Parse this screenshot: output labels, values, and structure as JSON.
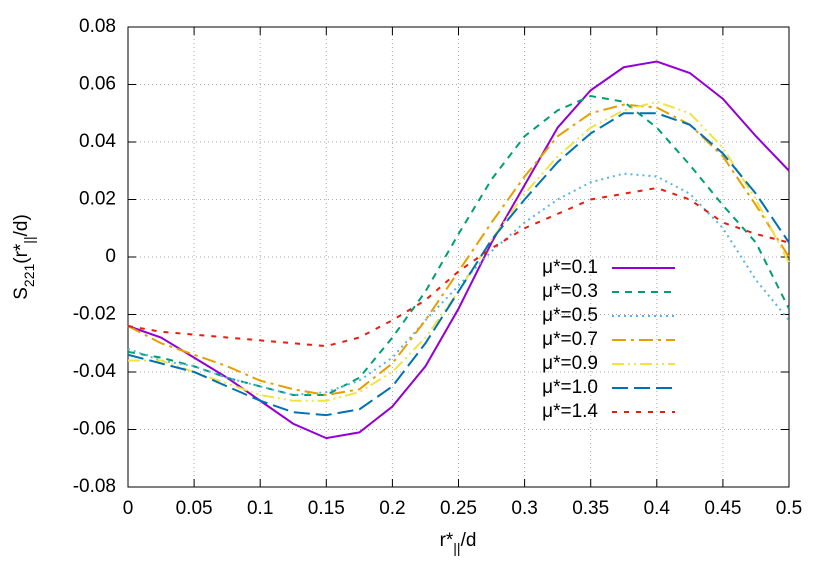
{
  "chart_data": {
    "type": "line",
    "x_label": [
      "r*",
      "||",
      "/d"
    ],
    "y_label": [
      "S",
      "221",
      "(r*",
      "||",
      "/d)"
    ],
    "x": [
      0,
      0.025,
      0.05,
      0.075,
      0.1,
      0.125,
      0.15,
      0.175,
      0.2,
      0.225,
      0.25,
      0.275,
      0.3,
      0.325,
      0.35,
      0.375,
      0.4,
      0.425,
      0.45,
      0.475,
      0.5
    ],
    "series": [
      {
        "name": "μ*=0.1",
        "color": "#9400d3",
        "dash": "none",
        "values": [
          -0.024,
          -0.028,
          -0.035,
          -0.042,
          -0.05,
          -0.058,
          -0.063,
          -0.061,
          -0.052,
          -0.038,
          -0.018,
          0.005,
          0.025,
          0.045,
          0.058,
          0.066,
          0.068,
          0.064,
          0.055,
          0.042,
          0.03
        ]
      },
      {
        "name": "μ*=0.3",
        "color": "#009e73",
        "dash": "7,6",
        "values": [
          -0.033,
          -0.035,
          -0.038,
          -0.042,
          -0.045,
          -0.048,
          -0.048,
          -0.042,
          -0.028,
          -0.012,
          0.008,
          0.027,
          0.042,
          0.051,
          0.056,
          0.054,
          0.045,
          0.032,
          0.018,
          0.005,
          -0.018
        ]
      },
      {
        "name": "μ*=0.5",
        "color": "#56b4e9",
        "dash": "2,4",
        "values": [
          -0.032,
          -0.036,
          -0.038,
          -0.042,
          -0.045,
          -0.048,
          -0.047,
          -0.043,
          -0.035,
          -0.022,
          -0.01,
          0.002,
          0.012,
          0.02,
          0.026,
          0.029,
          0.028,
          0.022,
          0.01,
          -0.008,
          -0.022
        ]
      },
      {
        "name": "μ*=0.7",
        "color": "#e69f00",
        "dash": "14,5,3,5",
        "values": [
          -0.024,
          -0.03,
          -0.034,
          -0.038,
          -0.043,
          -0.046,
          -0.048,
          -0.046,
          -0.037,
          -0.022,
          -0.005,
          0.012,
          0.028,
          0.042,
          0.05,
          0.053,
          0.052,
          0.046,
          0.035,
          0.018,
          0
        ]
      },
      {
        "name": "μ*=0.9",
        "color": "#f0e442",
        "dash": "12,4,2,4,2,4",
        "values": [
          -0.036,
          -0.036,
          -0.04,
          -0.044,
          -0.048,
          -0.05,
          -0.05,
          -0.047,
          -0.04,
          -0.028,
          -0.012,
          0.006,
          0.022,
          0.035,
          0.045,
          0.051,
          0.054,
          0.05,
          0.038,
          0.02,
          -0.002
        ]
      },
      {
        "name": "μ*=1.0",
        "color": "#0072b2",
        "dash": "16,6",
        "values": [
          -0.034,
          -0.037,
          -0.04,
          -0.045,
          -0.05,
          -0.054,
          -0.055,
          -0.053,
          -0.045,
          -0.03,
          -0.012,
          0.006,
          0.02,
          0.033,
          0.043,
          0.05,
          0.05,
          0.046,
          0.036,
          0.022,
          0.005
        ]
      },
      {
        "name": "μ*=1.4",
        "color": "#e51e10",
        "dash": "5,7",
        "values": [
          -0.024,
          -0.026,
          -0.027,
          -0.028,
          -0.029,
          -0.03,
          -0.031,
          -0.028,
          -0.022,
          -0.015,
          -0.005,
          0.003,
          0.01,
          0.015,
          0.02,
          0.022,
          0.024,
          0.02,
          0.012,
          0.008,
          0.005
        ]
      }
    ],
    "xlim": [
      0,
      0.5
    ],
    "xticks": [
      0,
      0.05,
      0.1,
      0.15,
      0.2,
      0.25,
      0.3,
      0.35,
      0.4,
      0.45,
      0.5
    ],
    "ylim": [
      -0.08,
      0.08
    ],
    "yticks": [
      -0.08,
      -0.06,
      -0.04,
      -0.02,
      0,
      0.02,
      0.04,
      0.06,
      0.08
    ],
    "grid": true
  }
}
